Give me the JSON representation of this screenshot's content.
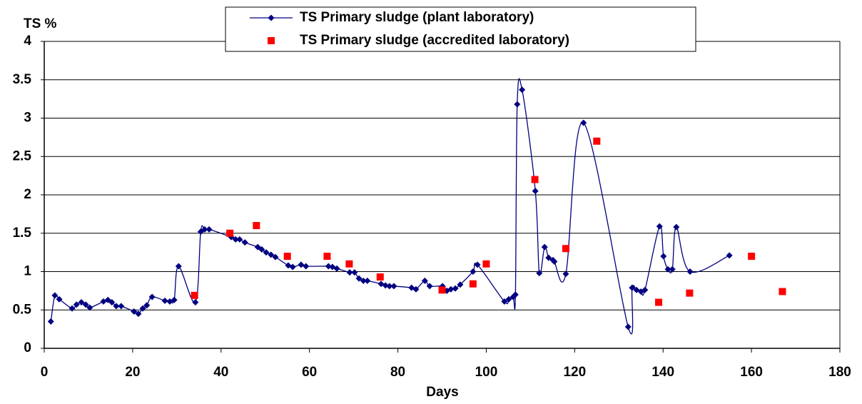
{
  "chart_data": {
    "type": "scatter",
    "ylabel": "TS %",
    "xlabel": "Days",
    "xlim": [
      0,
      180
    ],
    "xticks": [
      0,
      20,
      40,
      60,
      80,
      100,
      120,
      140,
      160,
      180
    ],
    "ylim": [
      0,
      4
    ],
    "yticks": [
      0,
      0.5,
      1,
      1.5,
      2,
      2.5,
      3,
      3.5,
      4
    ],
    "grid": true,
    "legend": "top",
    "series": [
      {
        "name": "TS Primary sludge (plant laboratory)",
        "color": "#000080",
        "marker": "diamond",
        "line": "smooth",
        "x": [
          1.5,
          2.4,
          3.4,
          6.3,
          7.3,
          8.4,
          9.4,
          10.3,
          13.4,
          14.4,
          15.3,
          16.3,
          17.4,
          20.3,
          21.3,
          22.3,
          23.2,
          24.4,
          27.3,
          28.4,
          29.4,
          30.4,
          34.2,
          35.4,
          36.3,
          37.3,
          42.3,
          43.3,
          44.2,
          45.4,
          48.3,
          49.2,
          50.2,
          51.3,
          52.3,
          55.2,
          56.2,
          58.1,
          59.2,
          64.3,
          65.2,
          66.2,
          69.1,
          70.2,
          71.2,
          72.2,
          73.1,
          76.2,
          77.2,
          78.1,
          79.1,
          83.1,
          84.1,
          86.1,
          87.2,
          90.1,
          91.1,
          92.0,
          93.0,
          94.1,
          97.0,
          98.0,
          104.1,
          105.1,
          106.1,
          106.6,
          107.0,
          108.1,
          111.1,
          112.0,
          113.2,
          114.1,
          115.1,
          115.4,
          118.0,
          122.0,
          132.1,
          133.0,
          134.0,
          135.0,
          135.9,
          139.2,
          140.1,
          141.1,
          142.1,
          143.0,
          146.1,
          155.0
        ],
        "values": [
          0.35,
          0.69,
          0.64,
          0.52,
          0.57,
          0.6,
          0.57,
          0.53,
          0.61,
          0.63,
          0.6,
          0.55,
          0.55,
          0.48,
          0.45,
          0.52,
          0.56,
          0.67,
          0.62,
          0.61,
          0.63,
          1.07,
          0.6,
          1.52,
          1.55,
          1.55,
          1.45,
          1.42,
          1.42,
          1.38,
          1.32,
          1.29,
          1.25,
          1.22,
          1.19,
          1.08,
          1.06,
          1.09,
          1.07,
          1.07,
          1.06,
          1.04,
          0.99,
          0.99,
          0.91,
          0.88,
          0.88,
          0.84,
          0.82,
          0.81,
          0.81,
          0.79,
          0.77,
          0.88,
          0.81,
          0.81,
          0.75,
          0.77,
          0.78,
          0.83,
          1.0,
          1.09,
          0.61,
          0.64,
          0.67,
          0.7,
          3.18,
          3.37,
          2.05,
          0.98,
          1.32,
          1.18,
          1.15,
          1.13,
          0.97,
          2.94,
          0.28,
          0.79,
          0.76,
          0.74,
          0.76,
          1.59,
          1.2,
          1.03,
          1.03,
          1.58,
          1.0,
          1.21
        ]
      },
      {
        "name": "TS Primary sludge (accredited laboratory)",
        "color": "#ff0000",
        "marker": "square",
        "line": "none",
        "x": [
          34,
          42,
          48,
          55,
          64,
          69,
          76,
          90,
          97,
          100,
          111,
          118,
          125,
          139,
          146,
          160,
          167
        ],
        "values": [
          0.69,
          1.5,
          1.6,
          1.2,
          1.2,
          1.1,
          0.93,
          0.76,
          0.84,
          1.1,
          2.2,
          1.3,
          2.7,
          0.6,
          0.72,
          1.2,
          0.74
        ]
      }
    ]
  }
}
